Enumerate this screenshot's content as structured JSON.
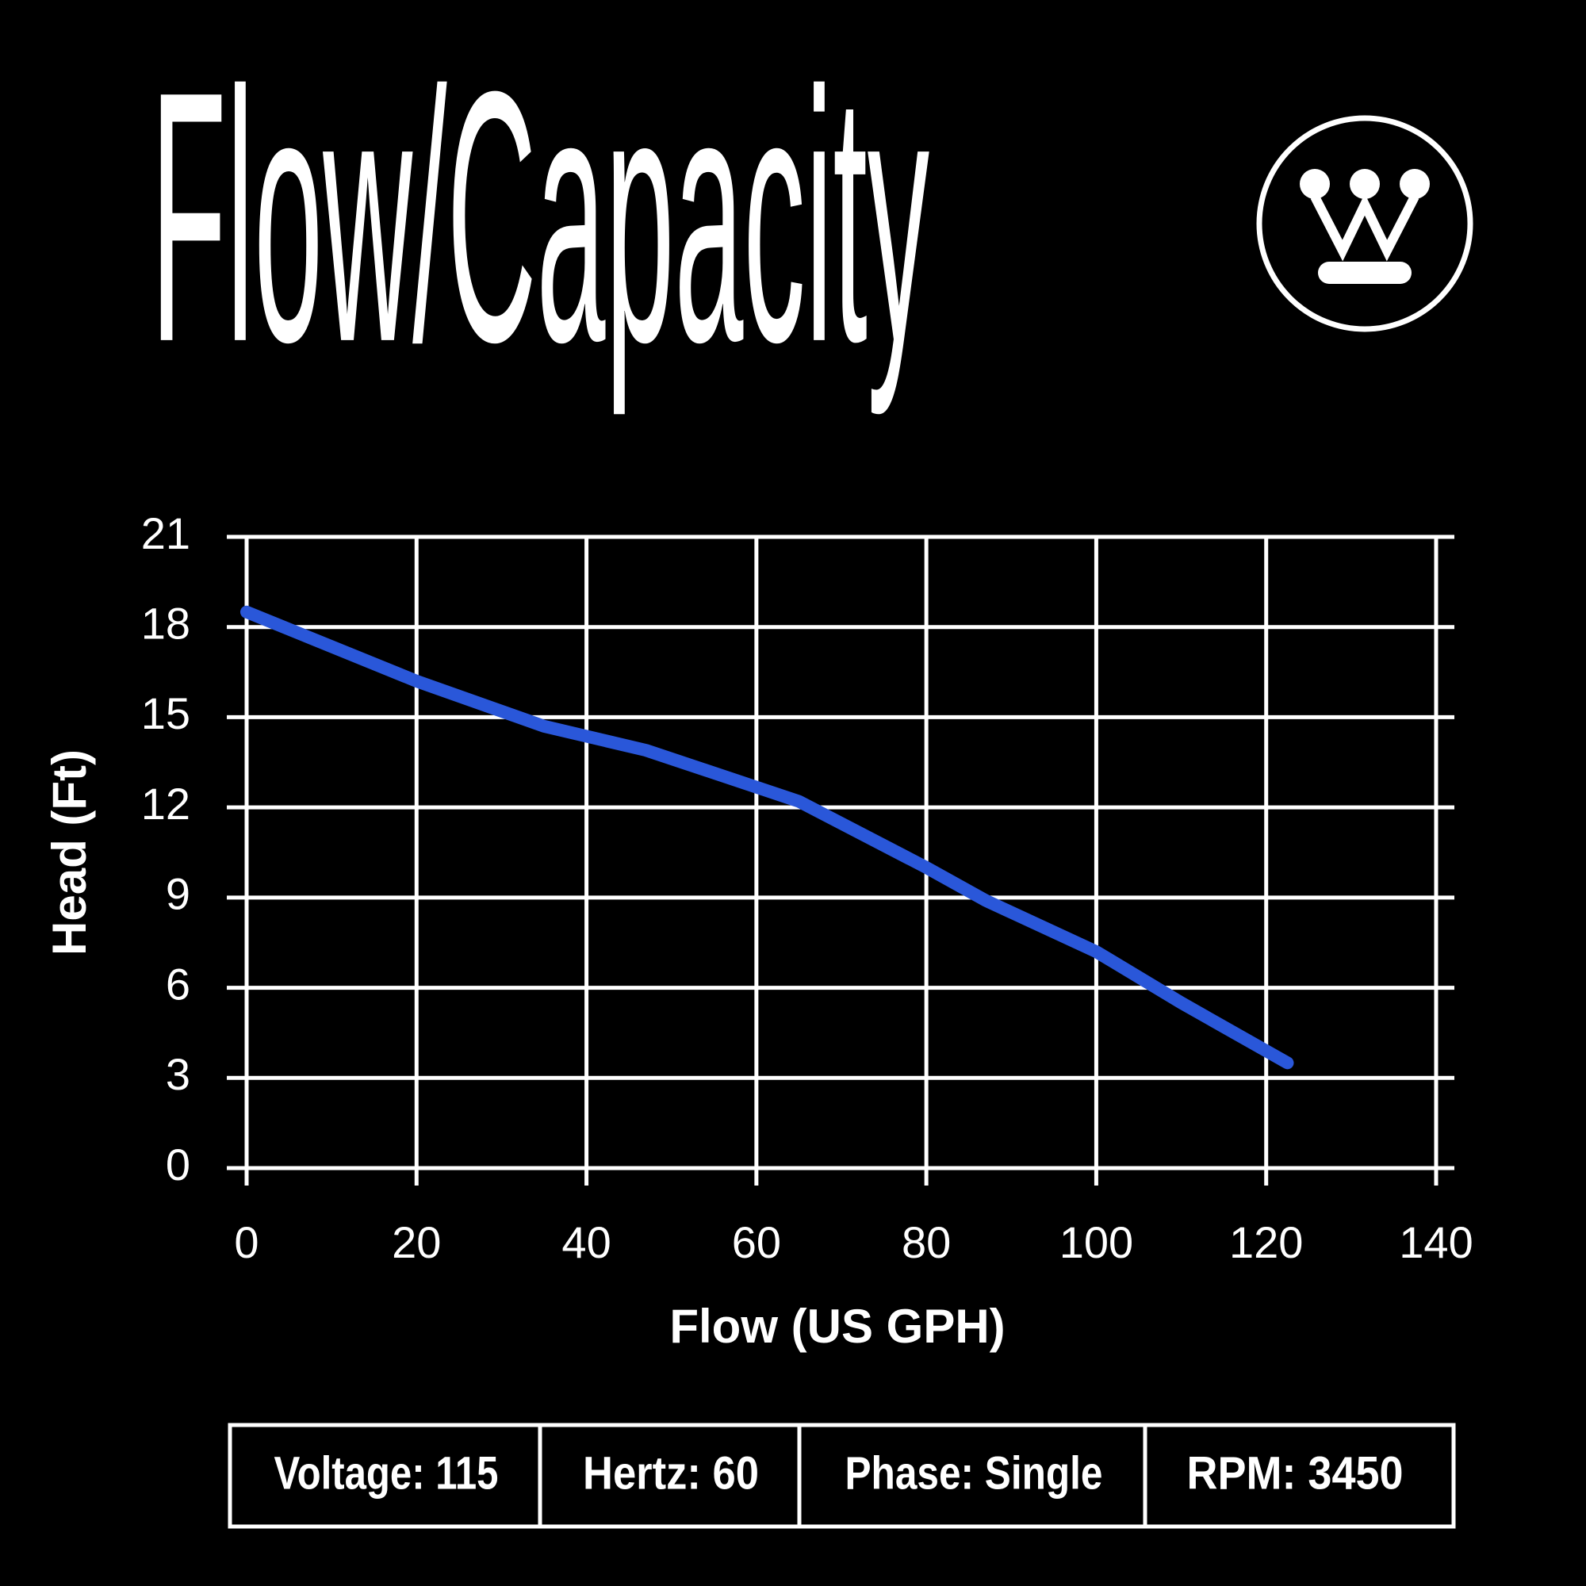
{
  "chart_data": {
    "type": "line",
    "title": "Flow/Capacity",
    "x_label": "Flow (US GPH)",
    "y_label": "Head (Ft)",
    "x": [
      0,
      20,
      35,
      47,
      65,
      80,
      87,
      100,
      110,
      122.5
    ],
    "series": [
      {
        "name": null,
        "color": "#2a57d9",
        "values": [
          18.5,
          16.2,
          14.7,
          13.9,
          12.2,
          10,
          8.9,
          7.2,
          5.5,
          3.5
        ]
      }
    ],
    "xlim": [
      0,
      140
    ],
    "xticks": [
      0,
      20,
      40,
      60,
      80,
      100,
      120,
      140
    ],
    "ylim": [
      0,
      21
    ],
    "yticks": [
      0,
      3,
      6,
      9,
      12,
      15,
      18,
      21
    ],
    "grid": true
  },
  "specs": [
    "Voltage: 115",
    "Hertz: 60",
    "Phase: Single",
    "RPM: 3450"
  ]
}
